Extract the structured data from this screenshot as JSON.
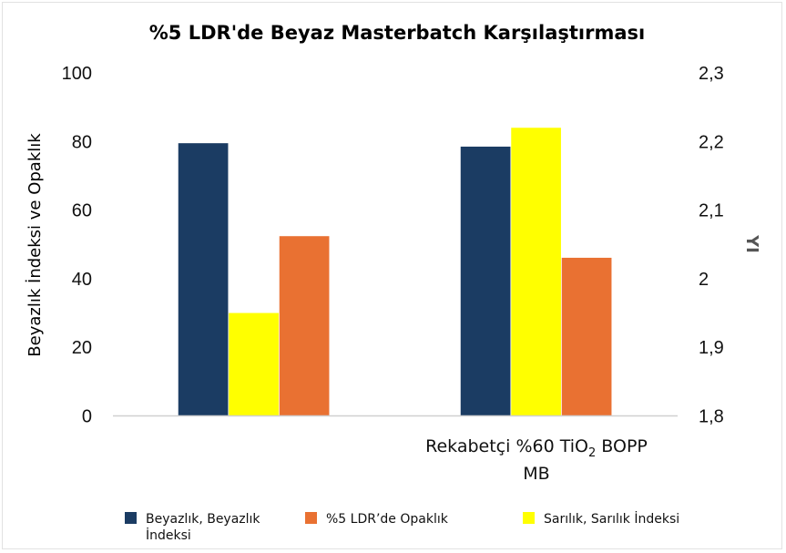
{
  "chart_data": {
    "type": "bar",
    "title": "%5 LDR'de Beyaz Masterbatch Karşılaştırması",
    "categories": [
      "",
      "Rekabetçi %60 TiO₂ BOPP MB"
    ],
    "category_lines": [
      [
        ""
      ],
      [
        "Rekabetçi %60 TiO",
        "2",
        " BOPP",
        "MB"
      ]
    ],
    "ylabel": "Beyazlık İndeksi ve Opaklık",
    "ylabel_right": "YI",
    "ylim": [
      0,
      100
    ],
    "ylim_right": [
      1.8,
      2.3
    ],
    "yticks": [
      "0",
      "20",
      "40",
      "60",
      "80",
      "100"
    ],
    "yticks_right": [
      "1,8",
      "1,9",
      "2",
      "2,1",
      "2,2",
      "2,3"
    ],
    "grid": false,
    "legend_position": "bottom",
    "series": [
      {
        "name": "Beyazlık, Beyazlık İndeksi",
        "legend_lines": [
          "Beyazlık, Beyazlık",
          "İndeksi"
        ],
        "axis": "left",
        "color": "#1b3c63",
        "values": [
          79.5,
          78.5
        ]
      },
      {
        "name": "Sarılık, Sarılık İndeksi",
        "legend_lines": [
          "Sarılık, Sarılık İndeksi"
        ],
        "axis": "right",
        "color": "#ffff00",
        "values": [
          1.95,
          2.22
        ]
      },
      {
        "name": "%5 LDR’de Opaklık",
        "legend_lines": [
          "%5 LDR’de Opaklık"
        ],
        "axis": "left",
        "color": "#e97132",
        "values": [
          52.4,
          46.1
        ]
      }
    ],
    "legend_order": [
      0,
      2,
      1
    ]
  }
}
